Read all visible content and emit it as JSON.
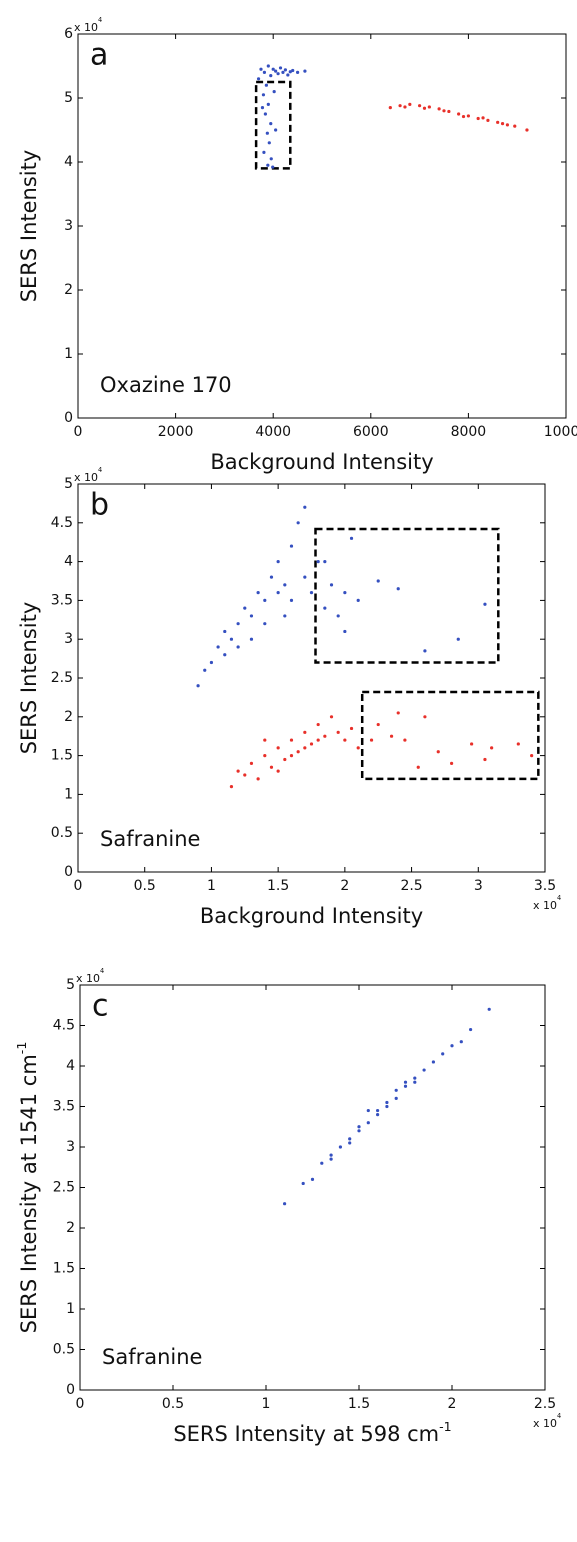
{
  "chart_data": [
    {
      "type": "scatter",
      "panel_label": "a",
      "annotation": "Oxazine 170",
      "xlabel": "Background Intensity",
      "ylabel": "SERS Intensity",
      "y_scale": "x 10",
      "y_scale_exp": "4",
      "xlim": [
        0,
        10000
      ],
      "ylim": [
        0,
        6
      ],
      "xticks": [
        0,
        2000,
        4000,
        6000,
        8000,
        10000
      ],
      "yticks": [
        0,
        1,
        2,
        3,
        4,
        5,
        6
      ],
      "series": [
        {
          "color": "#3550c0",
          "x": [
            3750,
            3820,
            3900,
            3950,
            4000,
            4050,
            4100,
            4150,
            4200,
            4250,
            4300,
            4350,
            4400,
            4500,
            4650,
            3860,
            3800,
            3900,
            3840,
            3950,
            3880,
            3920,
            3810,
            3960,
            3890,
            4050,
            3700,
            4020,
            3780,
            3990
          ],
          "values": [
            5.45,
            5.4,
            5.5,
            5.35,
            5.45,
            5.42,
            5.38,
            5.47,
            5.4,
            5.44,
            5.36,
            5.41,
            5.43,
            5.4,
            5.42,
            5.2,
            5.05,
            4.9,
            4.75,
            4.6,
            4.45,
            4.3,
            4.15,
            4.05,
            3.95,
            4.5,
            5.3,
            5.1,
            4.85,
            3.92
          ]
        },
        {
          "color": "#e8302a",
          "x": [
            6400,
            6600,
            6800,
            7000,
            7200,
            7400,
            7600,
            7800,
            8000,
            8200,
            8400,
            8600,
            8800,
            8950,
            9200,
            6700,
            7100,
            7500,
            7900,
            8300,
            8700
          ],
          "values": [
            4.85,
            4.88,
            4.9,
            4.88,
            4.86,
            4.83,
            4.79,
            4.75,
            4.72,
            4.68,
            4.65,
            4.62,
            4.58,
            4.56,
            4.5,
            4.86,
            4.84,
            4.8,
            4.71,
            4.69,
            4.6
          ]
        }
      ]
    },
    {
      "type": "scatter",
      "panel_label": "b",
      "annotation": "Safranine",
      "xlabel": "Background Intensity",
      "ylabel": "SERS Intensity",
      "y_scale": "x 10",
      "y_scale_exp": "4",
      "x_scale": "x 10",
      "x_scale_exp": "4",
      "xlim": [
        0,
        3.5
      ],
      "ylim": [
        0,
        5
      ],
      "xticks": [
        0,
        0.5,
        1,
        1.5,
        2,
        2.5,
        3,
        3.5
      ],
      "yticks": [
        0,
        0.5,
        1,
        1.5,
        2,
        2.5,
        3,
        3.5,
        4,
        4.5,
        5
      ],
      "series": [
        {
          "color": "#3550c0",
          "x": [
            0.9,
            0.95,
            1.0,
            1.05,
            1.1,
            1.1,
            1.15,
            1.2,
            1.2,
            1.25,
            1.3,
            1.3,
            1.35,
            1.4,
            1.4,
            1.45,
            1.5,
            1.5,
            1.55,
            1.6,
            1.6,
            1.65,
            1.7,
            1.7,
            1.75,
            1.8,
            1.85,
            1.9,
            2.0,
            1.55,
            1.85,
            1.95,
            2.05,
            2.25,
            2.4,
            2.1,
            2.6,
            2.85,
            3.05,
            2.0
          ],
          "values": [
            2.4,
            2.6,
            2.7,
            2.9,
            2.8,
            3.1,
            3.0,
            3.2,
            2.9,
            3.4,
            3.3,
            3.0,
            3.6,
            3.5,
            3.2,
            3.8,
            3.6,
            4.0,
            3.7,
            4.2,
            3.5,
            4.5,
            4.7,
            3.8,
            3.6,
            4.0,
            3.4,
            3.7,
            3.6,
            3.3,
            4.0,
            3.3,
            4.3,
            3.75,
            3.65,
            3.5,
            2.85,
            3.0,
            3.45,
            3.1
          ]
        },
        {
          "color": "#e8302a",
          "x": [
            1.15,
            1.2,
            1.3,
            1.35,
            1.4,
            1.45,
            1.5,
            1.55,
            1.6,
            1.6,
            1.65,
            1.7,
            1.7,
            1.75,
            1.8,
            1.8,
            1.85,
            1.9,
            1.95,
            2.0,
            2.05,
            1.5,
            1.4,
            1.25,
            2.1,
            2.2,
            2.25,
            2.35,
            2.45,
            2.6,
            2.7,
            2.8,
            2.95,
            3.05,
            3.1,
            3.3,
            3.4,
            2.4,
            2.55
          ],
          "values": [
            1.1,
            1.3,
            1.4,
            1.2,
            1.5,
            1.35,
            1.6,
            1.45,
            1.7,
            1.5,
            1.55,
            1.8,
            1.6,
            1.65,
            1.9,
            1.7,
            1.75,
            2.0,
            1.8,
            1.7,
            1.85,
            1.3,
            1.7,
            1.25,
            1.6,
            1.7,
            1.9,
            1.75,
            1.7,
            2.0,
            1.55,
            1.4,
            1.65,
            1.45,
            1.6,
            1.65,
            1.5,
            2.05,
            1.35
          ]
        }
      ]
    },
    {
      "type": "scatter",
      "panel_label": "c",
      "annotation": "Safranine",
      "xlabel": "SERS Intensity at 598 cm",
      "xlabel_sup": "-1",
      "ylabel": "SERS Intensity at 1541 cm",
      "ylabel_sup": "-1",
      "y_scale": "x 10",
      "y_scale_exp": "4",
      "x_scale": "x 10",
      "x_scale_exp": "4",
      "xlim": [
        0,
        2.5
      ],
      "ylim": [
        0,
        5
      ],
      "xticks": [
        0,
        0.5,
        1,
        1.5,
        2,
        2.5
      ],
      "yticks": [
        0,
        0.5,
        1,
        1.5,
        2,
        2.5,
        3,
        3.5,
        4,
        4.5,
        5
      ],
      "series": [
        {
          "color": "#3550c0",
          "x": [
            1.1,
            1.2,
            1.25,
            1.3,
            1.35,
            1.4,
            1.45,
            1.5,
            1.5,
            1.55,
            1.6,
            1.6,
            1.65,
            1.7,
            1.7,
            1.75,
            1.8,
            1.8,
            1.85,
            1.9,
            1.95,
            2.0,
            2.05,
            2.1,
            2.2,
            1.55,
            1.65,
            1.75,
            1.45,
            1.35
          ],
          "values": [
            2.3,
            2.55,
            2.6,
            2.8,
            2.9,
            3.0,
            3.1,
            3.25,
            3.2,
            3.3,
            3.4,
            3.45,
            3.5,
            3.6,
            3.7,
            3.75,
            3.85,
            3.8,
            3.95,
            4.05,
            4.15,
            4.25,
            4.3,
            4.45,
            4.7,
            3.45,
            3.55,
            3.8,
            3.05,
            2.85
          ]
        }
      ]
    }
  ]
}
